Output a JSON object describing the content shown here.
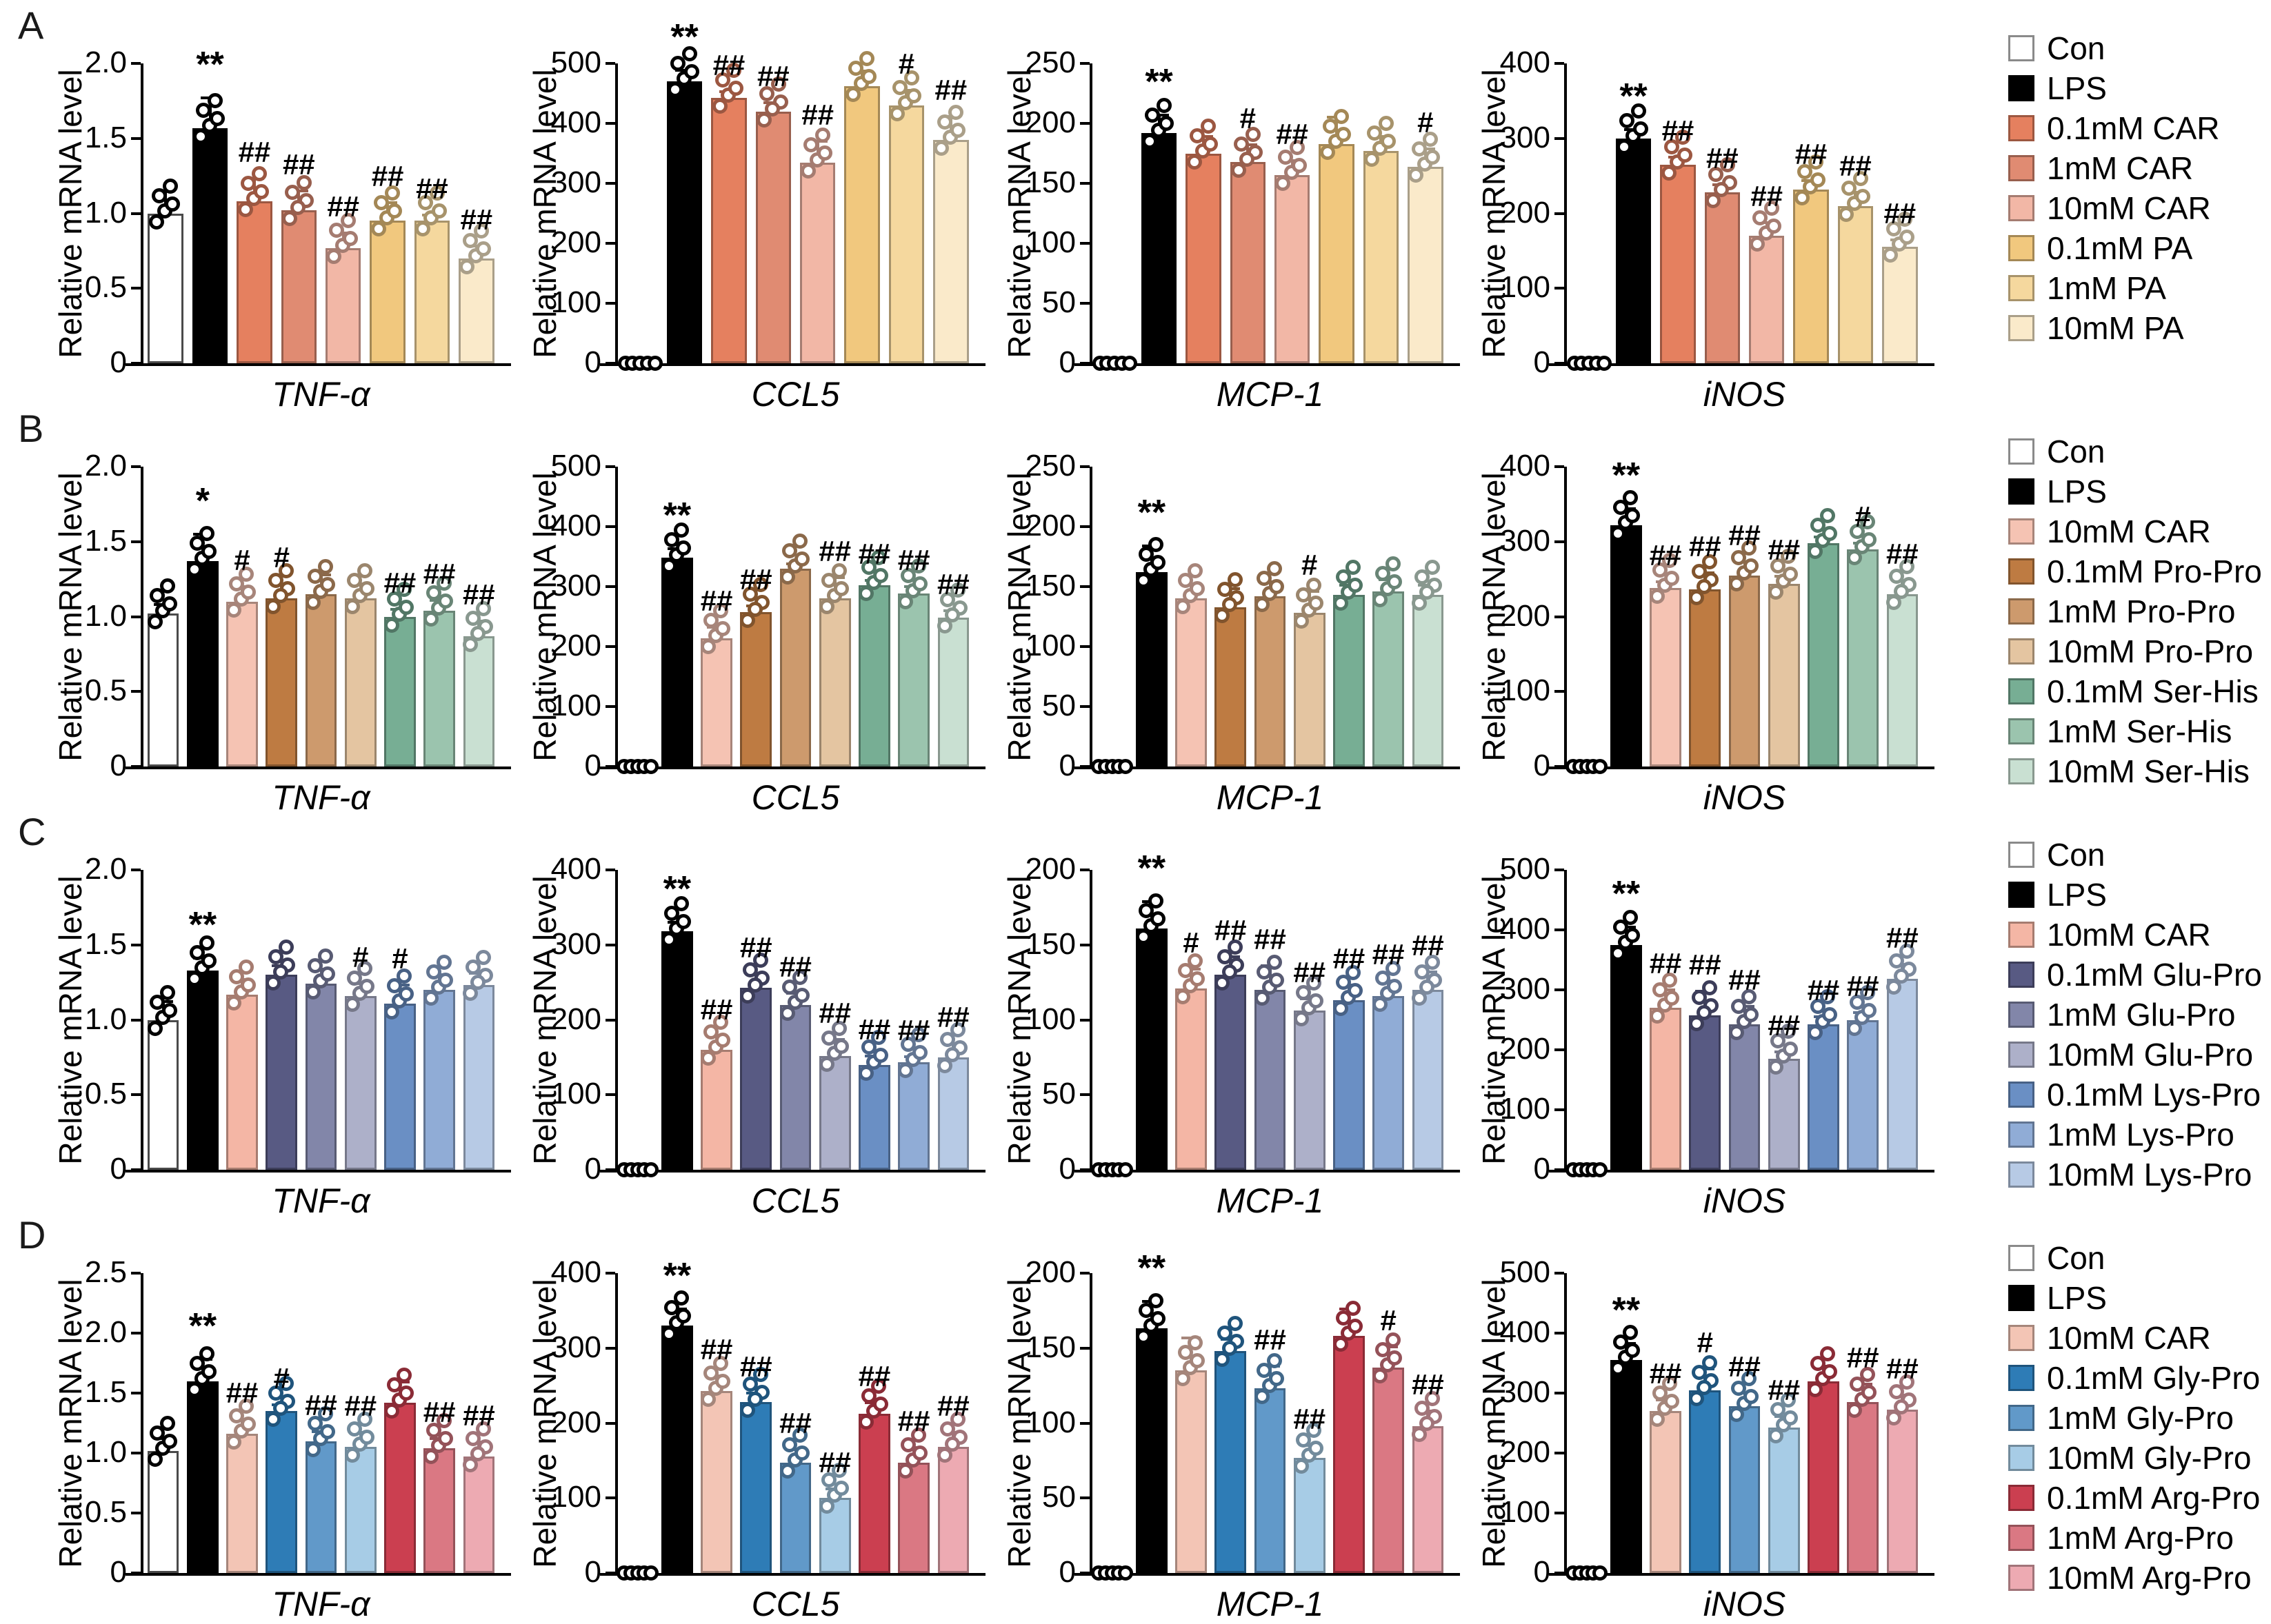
{
  "figure_title": "",
  "ylabel": "Relative mRNA level",
  "genes": [
    "TNF-α",
    "CCL5",
    "MCP-1",
    "iNOS"
  ],
  "panels": [
    {
      "letter": "A",
      "legend": [
        "Con",
        "LPS",
        "0.1mM CAR",
        "1mM CAR",
        "10mM CAR",
        "0.1mM PA",
        "1mM PA",
        "10mM PA"
      ],
      "colors": [
        "#FFFFFF",
        "#000000",
        "#E5805F",
        "#E08B72",
        "#F2B7A6",
        "#F1C87E",
        "#F5D89E",
        "#FAEACA"
      ]
    },
    {
      "letter": "B",
      "legend": [
        "Con",
        "LPS",
        "10mM CAR",
        "0.1mM Pro-Pro",
        "1mM Pro-Pro",
        "10mM Pro-Pro",
        "0.1mM Ser-His",
        "1mM Ser-His",
        "10mM Ser-His"
      ],
      "colors": [
        "#FFFFFF",
        "#000000",
        "#F5C3B3",
        "#BE7B42",
        "#CD9A6D",
        "#E4C5A1",
        "#77AE94",
        "#9BC4AE",
        "#C9E0D2"
      ]
    },
    {
      "letter": "C",
      "legend": [
        "Con",
        "LPS",
        "10mM CAR",
        "0.1mM Glu-Pro",
        "1mM Glu-Pro",
        "10mM Glu-Pro",
        "0.1mM Lys-Pro",
        "1mM Lys-Pro",
        "10mM Lys-Pro"
      ],
      "colors": [
        "#FFFFFF",
        "#000000",
        "#F4B6A5",
        "#585A83",
        "#8286A9",
        "#ADB0C9",
        "#6A8FC4",
        "#90ACD6",
        "#B7CAE5"
      ]
    },
    {
      "letter": "D",
      "legend": [
        "Con",
        "LPS",
        "10mM CAR",
        "0.1mM Gly-Pro",
        "1mM Gly-Pro",
        "10mM Gly-Pro",
        "0.1mM Arg-Pro",
        "1mM Arg-Pro",
        "10mM Arg-Pro"
      ],
      "colors": [
        "#FFFFFF",
        "#000000",
        "#F3C5B5",
        "#2E7CB6",
        "#6199C9",
        "#A7CCE6",
        "#CB3F50",
        "#DA7883",
        "#EDAAB2"
      ]
    }
  ],
  "chart_data": [
    {
      "panel": "A",
      "type": "bar",
      "gene": "TNF-α",
      "ylabel": "Relative mRNA level",
      "ymax": 2.0,
      "yticks": [
        0,
        0.5,
        1.0,
        1.5,
        2.0
      ],
      "ytick_labels": [
        "0",
        "0.5",
        "1.0",
        "1.5",
        "2.0"
      ],
      "categories": [
        "Con",
        "LPS",
        "0.1mM CAR",
        "1mM CAR",
        "10mM CAR",
        "0.1mM PA",
        "1mM PA",
        "10mM PA"
      ],
      "values": [
        1.0,
        1.57,
        1.08,
        1.02,
        0.77,
        0.95,
        0.95,
        0.7
      ],
      "err": [
        0.15,
        0.2,
        0.15,
        0.13,
        0.1,
        0.12,
        0.04,
        0.08
      ],
      "sig": [
        "",
        "**",
        "##",
        "##",
        "##",
        "##",
        "##",
        "##"
      ]
    },
    {
      "panel": "A",
      "type": "bar",
      "gene": "CCL5",
      "ylabel": "Relative mRNA level",
      "ymax": 500,
      "yticks": [
        0,
        100,
        200,
        300,
        400,
        500
      ],
      "ytick_labels": [
        "0",
        "100",
        "200",
        "300",
        "400",
        "500"
      ],
      "categories": [
        "Con",
        "LPS",
        "0.1mM CAR",
        "1mM CAR",
        "10mM CAR",
        "0.1mM PA",
        "1mM PA",
        "10mM PA"
      ],
      "values": [
        0,
        470,
        443,
        420,
        335,
        462,
        430,
        372
      ],
      "err": [
        0,
        18,
        10,
        15,
        35,
        25,
        25,
        40
      ],
      "sig": [
        "",
        "**",
        "##",
        "##",
        "##",
        "",
        "#",
        "##"
      ]
    },
    {
      "panel": "A",
      "type": "bar",
      "gene": "MCP-1",
      "ylabel": "Relative mRNA level",
      "ymax": 250,
      "yticks": [
        0,
        50,
        100,
        150,
        200,
        250
      ],
      "ytick_labels": [
        "0",
        "50",
        "100",
        "150",
        "200",
        "250"
      ],
      "categories": [
        "Con",
        "LPS",
        "0.1mM CAR",
        "1mM CAR",
        "10mM CAR",
        "0.1mM PA",
        "1mM PA",
        "10mM PA"
      ],
      "values": [
        0,
        192,
        175,
        168,
        157,
        183,
        177,
        164
      ],
      "err": [
        0,
        15,
        14,
        14,
        12,
        22,
        12,
        15
      ],
      "sig": [
        "",
        "**",
        "",
        "#",
        "##",
        "",
        "",
        "#"
      ]
    },
    {
      "panel": "A",
      "type": "bar",
      "gene": "iNOS",
      "ylabel": "Relative mRNA level",
      "ymax": 400,
      "yticks": [
        0,
        100,
        200,
        300,
        400
      ],
      "ytick_labels": [
        "0",
        "100",
        "200",
        "300",
        "400"
      ],
      "categories": [
        "Con",
        "LPS",
        "0.1mM CAR",
        "1mM CAR",
        "10mM CAR",
        "0.1mM PA",
        "1mM PA",
        "10mM PA"
      ],
      "values": [
        0,
        300,
        265,
        228,
        170,
        232,
        210,
        155
      ],
      "err": [
        0,
        12,
        10,
        10,
        18,
        12,
        18,
        10
      ],
      "sig": [
        "",
        "**",
        "##",
        "##",
        "##",
        "##",
        "##",
        "##"
      ]
    },
    {
      "panel": "B",
      "type": "bar",
      "gene": "TNF-α",
      "ylabel": "Relative mRNA level",
      "ymax": 2.0,
      "yticks": [
        0,
        0.5,
        1.0,
        1.5,
        2.0
      ],
      "ytick_labels": [
        "0",
        "0.5",
        "1.0",
        "1.5",
        "2.0"
      ],
      "categories": [
        "Con",
        "LPS",
        "10mM CAR",
        "0.1mM Pro-Pro",
        "1mM Pro-Pro",
        "10mM Pro-Pro",
        "0.1mM Ser-His",
        "1mM Ser-His",
        "10mM Ser-His"
      ],
      "values": [
        1.02,
        1.37,
        1.1,
        1.12,
        1.15,
        1.12,
        1.0,
        1.04,
        0.87
      ],
      "err": [
        0.06,
        0.18,
        0.1,
        0.1,
        0.13,
        0.1,
        0.05,
        0.07,
        0.1
      ],
      "sig": [
        "",
        "*",
        "#",
        "#",
        "",
        "",
        "##",
        "##",
        "##"
      ]
    },
    {
      "panel": "B",
      "type": "bar",
      "gene": "CCL5",
      "ylabel": "Relative mRNA level",
      "ymax": 500,
      "yticks": [
        0,
        100,
        200,
        300,
        400,
        500
      ],
      "ytick_labels": [
        "0",
        "100",
        "200",
        "300",
        "400",
        "500"
      ],
      "categories": [
        "Con",
        "LPS",
        "10mM CAR",
        "0.1mM Pro-Pro",
        "1mM Pro-Pro",
        "10mM Pro-Pro",
        "0.1mM Ser-His",
        "1mM Ser-His",
        "10mM Ser-His"
      ],
      "values": [
        0,
        348,
        214,
        258,
        330,
        280,
        302,
        288,
        248
      ],
      "err": [
        0,
        15,
        18,
        10,
        8,
        35,
        8,
        12,
        12
      ],
      "sig": [
        "",
        "**",
        "##",
        "##",
        "",
        "##",
        "##",
        "##",
        "##"
      ]
    },
    {
      "panel": "B",
      "type": "bar",
      "gene": "MCP-1",
      "ylabel": "Relative mRNA level",
      "ymax": 250,
      "yticks": [
        0,
        50,
        100,
        150,
        200,
        250
      ],
      "ytick_labels": [
        "0",
        "50",
        "100",
        "150",
        "200",
        "250"
      ],
      "categories": [
        "Con",
        "LPS",
        "10mM CAR",
        "0.1mM Pro-Pro",
        "1mM Pro-Pro",
        "10mM Pro-Pro",
        "0.1mM Ser-His",
        "1mM Ser-His",
        "10mM Ser-His"
      ],
      "values": [
        0,
        162,
        140,
        133,
        142,
        128,
        143,
        146,
        143
      ],
      "err": [
        0,
        22,
        12,
        15,
        12,
        18,
        8,
        10,
        8
      ],
      "sig": [
        "",
        "**",
        "",
        "",
        "",
        "#",
        "",
        "",
        ""
      ]
    },
    {
      "panel": "B",
      "type": "bar",
      "gene": "iNOS",
      "ylabel": "Relative mRNA level",
      "ymax": 400,
      "yticks": [
        0,
        100,
        200,
        300,
        400
      ],
      "ytick_labels": [
        "0",
        "100",
        "200",
        "300",
        "400"
      ],
      "categories": [
        "Con",
        "LPS",
        "10mM CAR",
        "0.1mM Pro-Pro",
        "1mM Pro-Pro",
        "10mM Pro-Pro",
        "0.1mM Ser-His",
        "1mM Ser-His",
        "10mM Ser-His"
      ],
      "values": [
        0,
        322,
        238,
        236,
        255,
        244,
        298,
        290,
        230
      ],
      "err": [
        0,
        22,
        8,
        22,
        18,
        10,
        8,
        8,
        18
      ],
      "sig": [
        "",
        "**",
        "##",
        "##",
        "##",
        "##",
        "",
        "#",
        "##"
      ]
    },
    {
      "panel": "C",
      "type": "bar",
      "gene": "TNF-α",
      "ylabel": "Relative mRNA level",
      "ymax": 2.0,
      "yticks": [
        0,
        0.5,
        1.0,
        1.5,
        2.0
      ],
      "ytick_labels": [
        "0",
        "0.5",
        "1.0",
        "1.5",
        "2.0"
      ],
      "categories": [
        "Con",
        "LPS",
        "10mM CAR",
        "0.1mM Glu-Pro",
        "1mM Glu-Pro",
        "10mM Glu-Pro",
        "0.1mM Lys-Pro",
        "1mM Lys-Pro",
        "10mM Lys-Pro"
      ],
      "values": [
        1.0,
        1.33,
        1.17,
        1.3,
        1.24,
        1.16,
        1.11,
        1.2,
        1.23
      ],
      "err": [
        0.12,
        0.08,
        0.1,
        0.06,
        0.1,
        0.08,
        0.12,
        0.1,
        0.08
      ],
      "sig": [
        "",
        "**",
        "",
        "",
        "",
        "#",
        "#",
        "",
        ""
      ]
    },
    {
      "panel": "C",
      "type": "bar",
      "gene": "CCL5",
      "ylabel": "Relative mRNA level",
      "ymax": 400,
      "yticks": [
        0,
        100,
        200,
        300,
        400
      ],
      "ytick_labels": [
        "0",
        "100",
        "200",
        "300",
        "400"
      ],
      "categories": [
        "Con",
        "LPS",
        "10mM CAR",
        "0.1mM Glu-Pro",
        "1mM Glu-Pro",
        "10mM Glu-Pro",
        "0.1mM Lys-Pro",
        "1mM Lys-Pro",
        "10mM Lys-Pro"
      ],
      "values": [
        0,
        318,
        160,
        243,
        220,
        152,
        140,
        143,
        150
      ],
      "err": [
        0,
        12,
        18,
        18,
        15,
        22,
        12,
        8,
        18
      ],
      "sig": [
        "",
        "**",
        "##",
        "##",
        "##",
        "##",
        "##",
        "##",
        "##"
      ]
    },
    {
      "panel": "C",
      "type": "bar",
      "gene": "MCP-1",
      "ylabel": "Relative mRNA level",
      "ymax": 200,
      "yticks": [
        0,
        50,
        100,
        150,
        200
      ],
      "ytick_labels": [
        "0",
        "50",
        "100",
        "150",
        "200"
      ],
      "categories": [
        "Con",
        "LPS",
        "10mM CAR",
        "0.1mM Glu-Pro",
        "1mM Glu-Pro",
        "10mM Glu-Pro",
        "0.1mM Lys-Pro",
        "1mM Lys-Pro",
        "10mM Lys-Pro"
      ],
      "values": [
        0,
        161,
        121,
        130,
        120,
        106,
        113,
        116,
        120
      ],
      "err": [
        0,
        18,
        13,
        12,
        16,
        8,
        10,
        10,
        12
      ],
      "sig": [
        "",
        "**",
        "#",
        "##",
        "##",
        "##",
        "##",
        "##",
        "##"
      ]
    },
    {
      "panel": "C",
      "type": "bar",
      "gene": "iNOS",
      "ylabel": "Relative mRNA level",
      "ymax": 500,
      "yticks": [
        0,
        100,
        200,
        300,
        400,
        500
      ],
      "ytick_labels": [
        "0",
        "100",
        "200",
        "300",
        "400",
        "500"
      ],
      "categories": [
        "Con",
        "LPS",
        "10mM CAR",
        "0.1mM Glu-Pro",
        "1mM Glu-Pro",
        "10mM Glu-Pro",
        "0.1mM Lys-Pro",
        "1mM Lys-Pro",
        "10mM Lys-Pro"
      ],
      "values": [
        0,
        375,
        270,
        258,
        242,
        185,
        243,
        250,
        318
      ],
      "err": [
        0,
        30,
        30,
        40,
        30,
        12,
        12,
        12,
        25
      ],
      "sig": [
        "",
        "**",
        "##",
        "##",
        "##",
        "##",
        "##",
        "##",
        "##"
      ]
    },
    {
      "panel": "D",
      "type": "bar",
      "gene": "TNF-α",
      "ylabel": "Relative mRNA level",
      "ymax": 2.5,
      "yticks": [
        0,
        0.5,
        1.0,
        1.5,
        2.0,
        2.5
      ],
      "ytick_labels": [
        "0",
        "0.5",
        "1.0",
        "1.5",
        "2.0",
        "2.5"
      ],
      "categories": [
        "Con",
        "LPS",
        "10mM CAR",
        "0.1mM Gly-Pro",
        "1mM Gly-Pro",
        "10mM Gly-Pro",
        "0.1mM Arg-Pro",
        "1mM Arg-Pro",
        "10mM Arg-Pro"
      ],
      "values": [
        1.02,
        1.6,
        1.16,
        1.35,
        1.1,
        1.05,
        1.42,
        1.04,
        0.97
      ],
      "err": [
        0.1,
        0.18,
        0.12,
        0.05,
        0.08,
        0.12,
        0.17,
        0.08,
        0.12
      ],
      "sig": [
        "",
        "**",
        "##",
        "#",
        "##",
        "##",
        "",
        "##",
        "##"
      ]
    },
    {
      "panel": "D",
      "type": "bar",
      "gene": "CCL5",
      "ylabel": "Relative mRNA level",
      "ymax": 400,
      "yticks": [
        0,
        100,
        200,
        300,
        400
      ],
      "ytick_labels": [
        "0",
        "100",
        "200",
        "300",
        "400"
      ],
      "categories": [
        "Con",
        "LPS",
        "10mM CAR",
        "0.1mM Gly-Pro",
        "1mM Gly-Pro",
        "10mM Gly-Pro",
        "0.1mM Arg-Pro",
        "1mM Arg-Pro",
        "10mM Arg-Pro"
      ],
      "values": [
        0,
        330,
        243,
        228,
        147,
        100,
        212,
        147,
        168
      ],
      "err": [
        0,
        22,
        20,
        12,
        18,
        12,
        15,
        20,
        20
      ],
      "sig": [
        "",
        "**",
        "##",
        "##",
        "##",
        "##",
        "##",
        "##",
        "##"
      ]
    },
    {
      "panel": "D",
      "type": "bar",
      "gene": "MCP-1",
      "ylabel": "Relative mRNA level",
      "ymax": 200,
      "yticks": [
        0,
        50,
        100,
        150,
        200
      ],
      "ytick_labels": [
        "0",
        "50",
        "100",
        "150",
        "200"
      ],
      "categories": [
        "Con",
        "LPS",
        "10mM CAR",
        "0.1mM Gly-Pro",
        "1mM Gly-Pro",
        "10mM Gly-Pro",
        "0.1mM Arg-Pro",
        "1mM Arg-Pro",
        "10mM Arg-Pro"
      ],
      "values": [
        0,
        163,
        135,
        148,
        123,
        77,
        158,
        137,
        98
      ],
      "err": [
        0,
        18,
        22,
        8,
        15,
        8,
        18,
        14,
        10
      ],
      "sig": [
        "",
        "**",
        "",
        "",
        "##",
        "##",
        "",
        "#",
        "##"
      ]
    },
    {
      "panel": "D",
      "type": "bar",
      "gene": "iNOS",
      "ylabel": "Relative mRNA level",
      "ymax": 500,
      "yticks": [
        0,
        100,
        200,
        300,
        400,
        500
      ],
      "ytick_labels": [
        "0",
        "100",
        "200",
        "300",
        "400",
        "500"
      ],
      "categories": [
        "Con",
        "LPS",
        "10mM CAR",
        "0.1mM Gly-Pro",
        "1mM Gly-Pro",
        "10mM Gly-Pro",
        "0.1mM Arg-Pro",
        "1mM Arg-Pro",
        "10mM Arg-Pro"
      ],
      "values": [
        0,
        355,
        270,
        305,
        278,
        243,
        320,
        285,
        272
      ],
      "err": [
        0,
        28,
        18,
        35,
        22,
        18,
        25,
        30,
        25
      ],
      "sig": [
        "",
        "**",
        "##",
        "#",
        "##",
        "##",
        "",
        "##",
        "##"
      ]
    }
  ]
}
